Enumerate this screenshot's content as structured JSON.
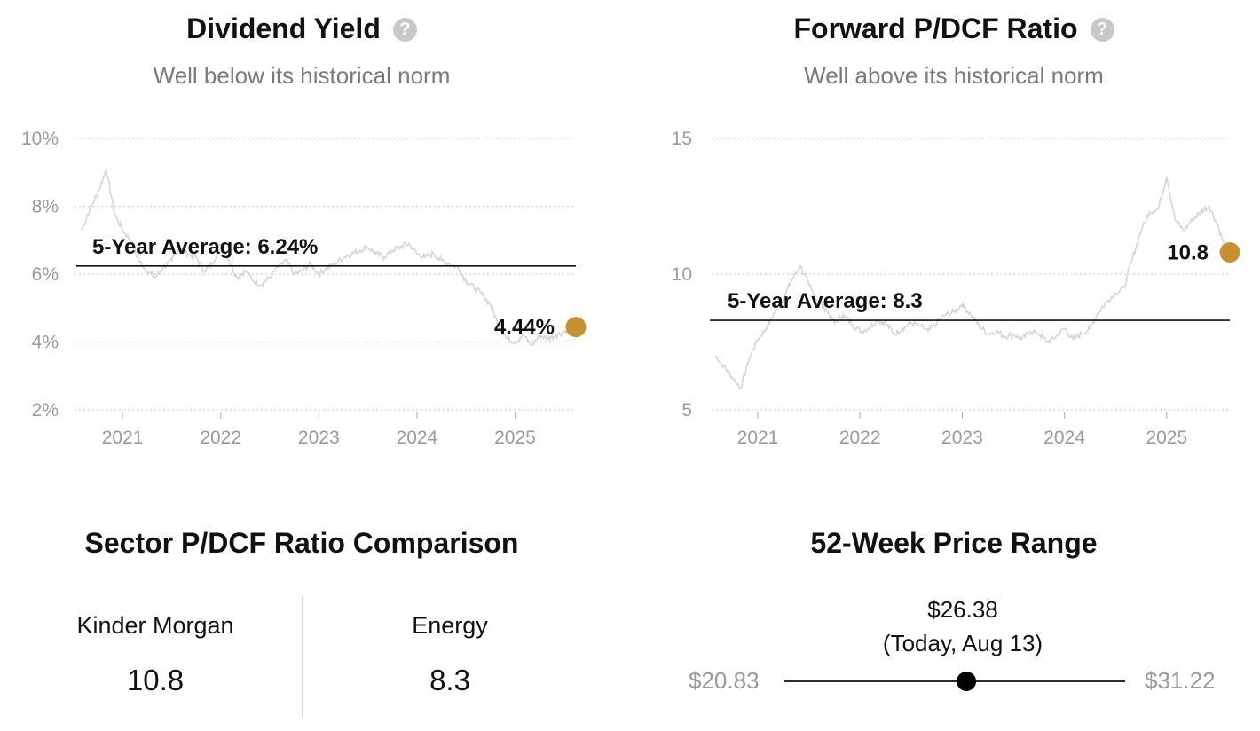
{
  "colors": {
    "accent": "#c79131",
    "line": "#d6d6d6",
    "avg": "#111111",
    "grid": "#d0d0d0",
    "tick": "#9a9a9a"
  },
  "help_icon": "question-circle-icon",
  "chart_data": [
    {
      "type": "line",
      "title": "Dividend Yield",
      "subtitle": "Well below its historical norm",
      "x_range": [
        "2020-08",
        "2025-08"
      ],
      "xticks": [
        "2021",
        "2022",
        "2023",
        "2024",
        "2025"
      ],
      "ylim": [
        2,
        10
      ],
      "yticks": [
        10,
        8,
        6,
        4,
        2
      ],
      "ytick_labels": [
        "10%",
        "8%",
        "6%",
        "4%",
        "2%"
      ],
      "average": {
        "value": 6.24,
        "label": "5-Year Average: 6.24%"
      },
      "current": {
        "value": 4.44,
        "label": "4.44%"
      },
      "series": [
        {
          "x": [
            "2020-08",
            "2020-09",
            "2020-10",
            "2020-11",
            "2020-12",
            "2021-01",
            "2021-02",
            "2021-03",
            "2021-04",
            "2021-05",
            "2021-06",
            "2021-07",
            "2021-08",
            "2021-09",
            "2021-10",
            "2021-11",
            "2021-12",
            "2022-01",
            "2022-02",
            "2022-03",
            "2022-04",
            "2022-05",
            "2022-06",
            "2022-07",
            "2022-08",
            "2022-09",
            "2022-10",
            "2022-11",
            "2022-12",
            "2023-01",
            "2023-02",
            "2023-03",
            "2023-04",
            "2023-05",
            "2023-06",
            "2023-07",
            "2023-08",
            "2023-09",
            "2023-10",
            "2023-11",
            "2023-12",
            "2024-01",
            "2024-02",
            "2024-03",
            "2024-04",
            "2024-05",
            "2024-06",
            "2024-07",
            "2024-08",
            "2024-09",
            "2024-10",
            "2024-11",
            "2024-12",
            "2025-01",
            "2025-02",
            "2025-03",
            "2025-04",
            "2025-05",
            "2025-06",
            "2025-07",
            "2025-08"
          ],
          "values": [
            7.3,
            7.9,
            8.4,
            9.1,
            7.8,
            7.3,
            7.0,
            6.4,
            6.1,
            5.9,
            6.2,
            6.4,
            6.8,
            6.6,
            6.5,
            6.1,
            6.3,
            6.9,
            6.4,
            5.9,
            6.1,
            5.8,
            5.7,
            5.9,
            6.2,
            6.4,
            6.0,
            6.1,
            6.3,
            6.0,
            6.2,
            6.3,
            6.5,
            6.6,
            6.7,
            6.8,
            6.6,
            6.5,
            6.7,
            6.8,
            6.9,
            6.6,
            6.5,
            6.6,
            6.4,
            6.3,
            6.2,
            5.8,
            5.6,
            5.4,
            5.1,
            4.5,
            4.1,
            4.0,
            4.2,
            3.9,
            4.2,
            4.1,
            4.2,
            4.3,
            4.44
          ]
        }
      ]
    },
    {
      "type": "line",
      "title": "Forward P/DCF Ratio",
      "subtitle": "Well above its historical norm",
      "x_range": [
        "2020-08",
        "2025-08"
      ],
      "xticks": [
        "2021",
        "2022",
        "2023",
        "2024",
        "2025"
      ],
      "ylim": [
        5,
        15
      ],
      "yticks": [
        15,
        10,
        5
      ],
      "ytick_labels": [
        "15",
        "10",
        "5"
      ],
      "average": {
        "value": 8.3,
        "label": "5-Year Average: 8.3"
      },
      "current": {
        "value": 10.8,
        "label": "10.8"
      },
      "series": [
        {
          "x": [
            "2020-08",
            "2020-09",
            "2020-10",
            "2020-11",
            "2020-12",
            "2021-01",
            "2021-02",
            "2021-03",
            "2021-04",
            "2021-05",
            "2021-06",
            "2021-07",
            "2021-08",
            "2021-09",
            "2021-10",
            "2021-11",
            "2021-12",
            "2022-01",
            "2022-02",
            "2022-03",
            "2022-04",
            "2022-05",
            "2022-06",
            "2022-07",
            "2022-08",
            "2022-09",
            "2022-10",
            "2022-11",
            "2022-12",
            "2023-01",
            "2023-02",
            "2023-03",
            "2023-04",
            "2023-05",
            "2023-06",
            "2023-07",
            "2023-08",
            "2023-09",
            "2023-10",
            "2023-11",
            "2023-12",
            "2024-01",
            "2024-02",
            "2024-03",
            "2024-04",
            "2024-05",
            "2024-06",
            "2024-07",
            "2024-08",
            "2024-09",
            "2024-10",
            "2024-11",
            "2024-12",
            "2025-01",
            "2025-02",
            "2025-03",
            "2025-04",
            "2025-05",
            "2025-06",
            "2025-07",
            "2025-08"
          ],
          "values": [
            7.0,
            6.6,
            6.2,
            5.8,
            6.9,
            7.6,
            8.0,
            8.6,
            9.1,
            9.8,
            10.3,
            9.6,
            9.0,
            8.7,
            8.2,
            8.5,
            8.2,
            7.9,
            8.0,
            8.3,
            8.2,
            7.8,
            8.0,
            8.2,
            8.1,
            7.9,
            8.2,
            8.5,
            8.6,
            8.9,
            8.5,
            8.1,
            7.8,
            7.9,
            7.7,
            7.8,
            7.6,
            7.9,
            7.8,
            7.5,
            7.7,
            8.0,
            7.6,
            7.8,
            8.0,
            8.6,
            9.0,
            9.3,
            9.5,
            10.6,
            11.6,
            12.3,
            12.4,
            13.6,
            12.0,
            11.6,
            12.0,
            12.3,
            12.5,
            11.8,
            10.8
          ]
        }
      ]
    }
  ],
  "sector_comparison": {
    "title": "Sector P/DCF Ratio Comparison",
    "items": [
      {
        "name": "Kinder Morgan",
        "value": "10.8"
      },
      {
        "name": "Energy",
        "value": "8.3"
      }
    ]
  },
  "price_range": {
    "title": "52-Week Price Range",
    "low": "$20.83",
    "high": "$31.22",
    "current": "$26.38",
    "current_note": "(Today, Aug 13)",
    "low_value": 20.83,
    "high_value": 31.22,
    "current_value": 26.38
  }
}
